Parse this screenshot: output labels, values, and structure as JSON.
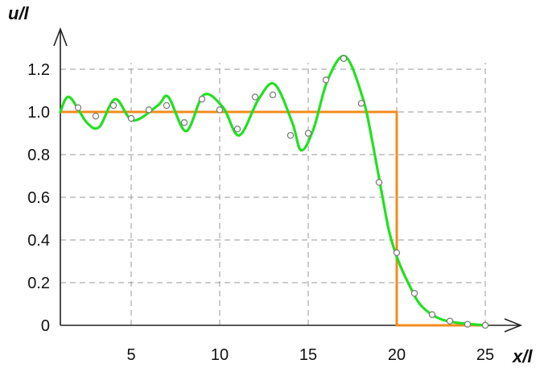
{
  "chart_data": {
    "type": "line",
    "xlabel": "x/l",
    "ylabel": "u/l",
    "xlim": [
      1,
      25
    ],
    "ylim": [
      0,
      1.2
    ],
    "x_ticks": [
      5,
      10,
      15,
      20,
      25
    ],
    "y_ticks": [
      0,
      0.2,
      0.4,
      0.6,
      0.8,
      1.0,
      1.2
    ],
    "x_tick_labels": [
      "5",
      "10",
      "15",
      "20",
      "25"
    ],
    "y_tick_labels": [
      "0",
      "0.2",
      "0.4",
      "0.6",
      "0.8",
      "1.0",
      "1.2"
    ],
    "grid": true,
    "series": [
      {
        "kind": "step",
        "color": "#f28c1e",
        "points": [
          [
            1,
            1.0
          ],
          [
            20,
            1.0
          ],
          [
            20,
            0.0
          ],
          [
            25,
            0.0
          ]
        ]
      },
      {
        "kind": "smooth",
        "color": "#22e022",
        "points": [
          [
            1,
            1.0
          ],
          [
            1.5,
            1.07
          ],
          [
            2.5,
            0.95
          ],
          [
            3.2,
            0.93
          ],
          [
            4.1,
            1.06
          ],
          [
            5.1,
            0.96
          ],
          [
            6.5,
            1.03
          ],
          [
            7.1,
            1.07
          ],
          [
            8.1,
            0.91
          ],
          [
            9.1,
            1.08
          ],
          [
            10.2,
            1.02
          ],
          [
            11.1,
            0.89
          ],
          [
            12.2,
            1.06
          ],
          [
            13.1,
            1.13
          ],
          [
            14.1,
            0.95
          ],
          [
            14.6,
            0.82
          ],
          [
            15.3,
            0.92
          ],
          [
            16.1,
            1.15
          ],
          [
            17.1,
            1.26
          ],
          [
            18.1,
            1.06
          ],
          [
            18.6,
            0.87
          ],
          [
            19.2,
            0.6
          ],
          [
            19.6,
            0.43
          ],
          [
            20.1,
            0.3
          ],
          [
            20.7,
            0.19
          ],
          [
            21.3,
            0.1
          ],
          [
            22.2,
            0.04
          ],
          [
            23.2,
            0.015
          ],
          [
            25.0,
            0.0
          ]
        ]
      },
      {
        "kind": "markers",
        "color": "#777777",
        "points": [
          [
            2,
            1.02
          ],
          [
            3,
            0.98
          ],
          [
            4,
            1.03
          ],
          [
            5,
            0.97
          ],
          [
            6,
            1.01
          ],
          [
            7,
            1.03
          ],
          [
            8,
            0.95
          ],
          [
            9,
            1.06
          ],
          [
            10,
            1.01
          ],
          [
            11,
            0.92
          ],
          [
            12,
            1.07
          ],
          [
            13,
            1.08
          ],
          [
            14,
            0.89
          ],
          [
            15,
            0.9
          ],
          [
            16,
            1.15
          ],
          [
            17,
            1.25
          ],
          [
            18,
            1.04
          ],
          [
            19,
            0.67
          ],
          [
            20,
            0.34
          ],
          [
            21,
            0.15
          ],
          [
            22,
            0.05
          ],
          [
            23,
            0.02
          ],
          [
            24,
            0.005
          ],
          [
            25,
            0.0
          ]
        ]
      }
    ]
  }
}
